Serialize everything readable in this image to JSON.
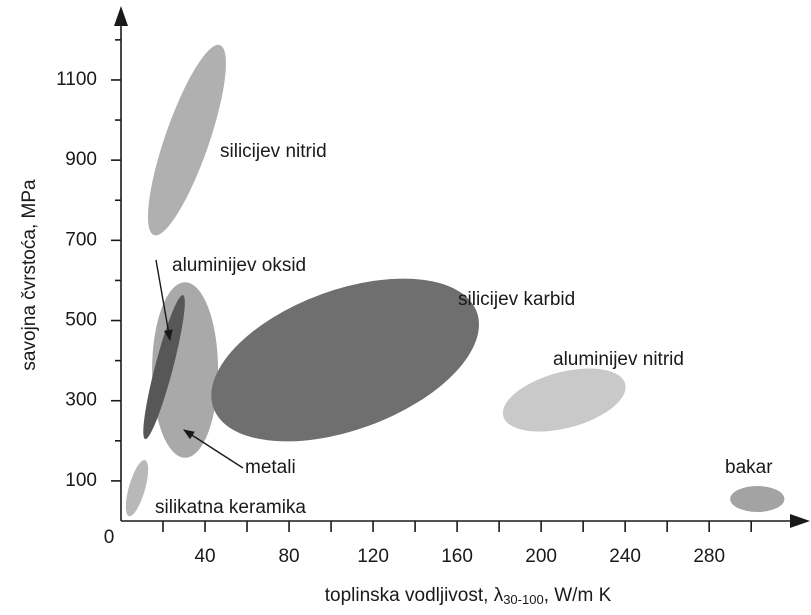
{
  "chart_data": {
    "type": "ellipse-regions",
    "xlabel_parts": [
      "toplinska vodljivost, λ",
      "30-100",
      ", W/m K"
    ],
    "ylabel": "savojna čvrstoća, MPa",
    "xlim": [
      0,
      328
    ],
    "ylim": [
      0,
      1272
    ],
    "xticks": [
      0,
      40,
      80,
      120,
      160,
      200,
      240,
      280
    ],
    "xminor_ticks": [
      20,
      60,
      100,
      140,
      180,
      220,
      260,
      300
    ],
    "yticks": [
      100,
      300,
      500,
      700,
      900,
      1100
    ],
    "yminor_ticks": [
      200,
      400,
      600,
      800,
      1000,
      1200
    ],
    "regions": [
      {
        "name": "silikatna keramika",
        "x": 7.6,
        "y": 82,
        "a": [
          3.8,
          69.8
        ],
        "b": [
          3.7,
          -5.5
        ],
        "color": "#b8b8b8"
      },
      {
        "name": "silicijev nitrid",
        "x": 31.4,
        "y": 950,
        "a": [
          15.7,
          237
        ],
        "b": [
          9.9,
          -18
        ],
        "color": "#b0b0b0"
      },
      {
        "name": "metali",
        "x": 30.5,
        "y": 376.6,
        "a": [
          0,
          219
        ],
        "b": [
          15.7,
          0
        ],
        "color": "#a9a9a9"
      },
      {
        "name": "silicijev karbid",
        "x": 106.7,
        "y": 401.5,
        "a": [
          62.7,
          119.5
        ],
        "b": [
          11.3,
          -164
        ],
        "color": "#6f6f6f"
      },
      {
        "name": "aluminijev oksid",
        "x": 20.5,
        "y": 384,
        "a": [
          9.0,
          179.6
        ],
        "b": [
          4.1,
          -5.7
        ],
        "color": "#575757"
      },
      {
        "name": "aluminijev nitrid",
        "x": 211,
        "y": 301.7,
        "a": [
          29,
          40.6
        ],
        "b": [
          3.5,
          -67.3
        ],
        "color": "#c9c9c9"
      },
      {
        "name": "bakar",
        "x": 302.9,
        "y": 54.9,
        "a": [
          12.9,
          0
        ],
        "b": [
          0,
          32.4
        ],
        "color": "#a3a3a3"
      }
    ]
  }
}
